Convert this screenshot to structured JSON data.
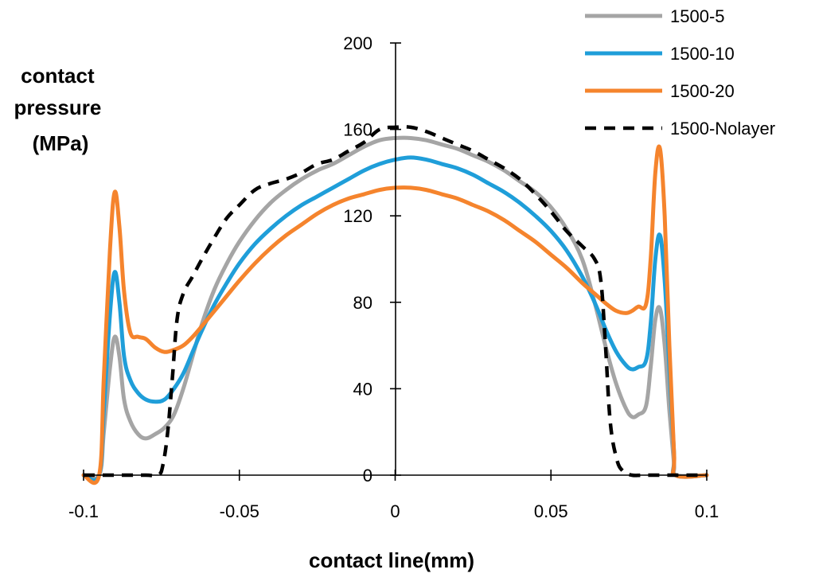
{
  "chart_data": {
    "type": "line",
    "title": "",
    "xlabel": "contact line(mm)",
    "ylabel_lines": [
      "contact",
      "pressure",
      "(MPa)"
    ],
    "xlim": [
      -0.1,
      0.1
    ],
    "ylim": [
      0,
      200
    ],
    "x_ticks": [
      -0.1,
      -0.05,
      0,
      0.05,
      0.1
    ],
    "x_tick_labels": [
      "-0.1",
      "-0.05",
      "0",
      "0.05",
      "0.1"
    ],
    "y_ticks": [
      0,
      40,
      80,
      120,
      160,
      200
    ],
    "y_tick_labels": [
      "0",
      "40",
      "80",
      "120",
      "160",
      "200"
    ],
    "grid": false,
    "legend_position": "top-right",
    "series": [
      {
        "name": "1500-5",
        "color": "#a5a5a5",
        "dash": "solid",
        "points": [
          [
            -0.1,
            0
          ],
          [
            -0.095,
            0
          ],
          [
            -0.0935,
            20
          ],
          [
            -0.0915,
            50
          ],
          [
            -0.09,
            64
          ],
          [
            -0.0885,
            55
          ],
          [
            -0.087,
            35
          ],
          [
            -0.085,
            25
          ],
          [
            -0.0825,
            19
          ],
          [
            -0.08,
            17
          ],
          [
            -0.077,
            19
          ],
          [
            -0.074,
            22
          ],
          [
            -0.071,
            28
          ],
          [
            -0.068,
            40
          ],
          [
            -0.065,
            55
          ],
          [
            -0.062,
            70
          ],
          [
            -0.058,
            86
          ],
          [
            -0.054,
            98
          ],
          [
            -0.05,
            108
          ],
          [
            -0.045,
            118
          ],
          [
            -0.04,
            126
          ],
          [
            -0.035,
            132
          ],
          [
            -0.03,
            137
          ],
          [
            -0.025,
            141
          ],
          [
            -0.02,
            144
          ],
          [
            -0.015,
            148
          ],
          [
            -0.01,
            152
          ],
          [
            -0.005,
            155
          ],
          [
            0,
            156
          ],
          [
            0.005,
            156
          ],
          [
            0.01,
            155
          ],
          [
            0.015,
            153
          ],
          [
            0.02,
            151
          ],
          [
            0.025,
            148
          ],
          [
            0.03,
            145
          ],
          [
            0.035,
            141
          ],
          [
            0.04,
            136
          ],
          [
            0.045,
            131
          ],
          [
            0.05,
            124
          ],
          [
            0.055,
            114
          ],
          [
            0.06,
            100
          ],
          [
            0.064,
            80
          ],
          [
            0.068,
            57
          ],
          [
            0.071,
            42
          ],
          [
            0.074,
            31
          ],
          [
            0.076,
            27
          ],
          [
            0.078,
            28
          ],
          [
            0.0805,
            32
          ],
          [
            0.082,
            50
          ],
          [
            0.0835,
            72
          ],
          [
            0.085,
            77
          ],
          [
            0.0865,
            60
          ],
          [
            0.088,
            30
          ],
          [
            0.0895,
            5
          ],
          [
            0.09,
            0
          ],
          [
            0.1,
            0
          ]
        ]
      },
      {
        "name": "1500-10",
        "color": "#1f9ed9",
        "dash": "solid",
        "points": [
          [
            -0.1,
            0
          ],
          [
            -0.095,
            0
          ],
          [
            -0.0935,
            30
          ],
          [
            -0.0915,
            75
          ],
          [
            -0.09,
            94
          ],
          [
            -0.0885,
            80
          ],
          [
            -0.087,
            55
          ],
          [
            -0.085,
            44
          ],
          [
            -0.0825,
            38
          ],
          [
            -0.08,
            35
          ],
          [
            -0.077,
            34
          ],
          [
            -0.074,
            35
          ],
          [
            -0.071,
            40
          ],
          [
            -0.068,
            47
          ],
          [
            -0.065,
            57
          ],
          [
            -0.062,
            67
          ],
          [
            -0.058,
            79
          ],
          [
            -0.054,
            89
          ],
          [
            -0.05,
            98
          ],
          [
            -0.045,
            107
          ],
          [
            -0.04,
            114
          ],
          [
            -0.035,
            120
          ],
          [
            -0.03,
            125
          ],
          [
            -0.025,
            129
          ],
          [
            -0.02,
            133
          ],
          [
            -0.015,
            137
          ],
          [
            -0.01,
            141
          ],
          [
            -0.005,
            144
          ],
          [
            0,
            146
          ],
          [
            0.005,
            147
          ],
          [
            0.01,
            146
          ],
          [
            0.015,
            144
          ],
          [
            0.02,
            142
          ],
          [
            0.025,
            139
          ],
          [
            0.03,
            135
          ],
          [
            0.035,
            131
          ],
          [
            0.04,
            126
          ],
          [
            0.045,
            120
          ],
          [
            0.05,
            113
          ],
          [
            0.055,
            104
          ],
          [
            0.06,
            92
          ],
          [
            0.064,
            80
          ],
          [
            0.068,
            66
          ],
          [
            0.071,
            57
          ],
          [
            0.074,
            51
          ],
          [
            0.076,
            49
          ],
          [
            0.078,
            50
          ],
          [
            0.0805,
            53
          ],
          [
            0.082,
            70
          ],
          [
            0.0835,
            100
          ],
          [
            0.085,
            111
          ],
          [
            0.0865,
            90
          ],
          [
            0.088,
            50
          ],
          [
            0.0895,
            10
          ],
          [
            0.09,
            0
          ],
          [
            0.1,
            0
          ]
        ]
      },
      {
        "name": "1500-20",
        "color": "#f5842d",
        "dash": "solid",
        "points": [
          [
            -0.1,
            0
          ],
          [
            -0.095,
            0
          ],
          [
            -0.0935,
            45
          ],
          [
            -0.0915,
            105
          ],
          [
            -0.09,
            131
          ],
          [
            -0.0885,
            115
          ],
          [
            -0.087,
            85
          ],
          [
            -0.085,
            66
          ],
          [
            -0.0825,
            64
          ],
          [
            -0.08,
            63
          ],
          [
            -0.077,
            59
          ],
          [
            -0.074,
            57
          ],
          [
            -0.071,
            58
          ],
          [
            -0.068,
            60
          ],
          [
            -0.065,
            64
          ],
          [
            -0.062,
            69
          ],
          [
            -0.058,
            76
          ],
          [
            -0.054,
            83
          ],
          [
            -0.05,
            90
          ],
          [
            -0.045,
            98
          ],
          [
            -0.04,
            105
          ],
          [
            -0.035,
            111
          ],
          [
            -0.03,
            116
          ],
          [
            -0.025,
            121
          ],
          [
            -0.02,
            125
          ],
          [
            -0.015,
            128
          ],
          [
            -0.01,
            130
          ],
          [
            -0.005,
            132
          ],
          [
            0,
            133
          ],
          [
            0.005,
            133
          ],
          [
            0.01,
            132
          ],
          [
            0.015,
            130
          ],
          [
            0.02,
            128
          ],
          [
            0.025,
            125
          ],
          [
            0.03,
            122
          ],
          [
            0.035,
            118
          ],
          [
            0.04,
            113
          ],
          [
            0.045,
            108
          ],
          [
            0.05,
            102
          ],
          [
            0.055,
            96
          ],
          [
            0.06,
            89
          ],
          [
            0.064,
            84
          ],
          [
            0.068,
            79
          ],
          [
            0.071,
            76
          ],
          [
            0.074,
            75
          ],
          [
            0.076,
            76
          ],
          [
            0.078,
            78
          ],
          [
            0.0805,
            79
          ],
          [
            0.082,
            100
          ],
          [
            0.0835,
            140
          ],
          [
            0.085,
            151
          ],
          [
            0.0865,
            120
          ],
          [
            0.088,
            60
          ],
          [
            0.0895,
            10
          ],
          [
            0.09,
            0
          ],
          [
            0.1,
            0
          ]
        ]
      },
      {
        "name": "1500-Nolayer",
        "color": "#000000",
        "dash": "dashed",
        "points": [
          [
            -0.1,
            0
          ],
          [
            -0.09,
            0
          ],
          [
            -0.08,
            0
          ],
          [
            -0.076,
            0
          ],
          [
            -0.0745,
            5
          ],
          [
            -0.073,
            20
          ],
          [
            -0.0715,
            45
          ],
          [
            -0.07,
            72
          ],
          [
            -0.068,
            84
          ],
          [
            -0.065,
            92
          ],
          [
            -0.062,
            100
          ],
          [
            -0.058,
            110
          ],
          [
            -0.054,
            119
          ],
          [
            -0.05,
            125
          ],
          [
            -0.045,
            132
          ],
          [
            -0.04,
            135
          ],
          [
            -0.035,
            137
          ],
          [
            -0.03,
            140
          ],
          [
            -0.025,
            144
          ],
          [
            -0.02,
            146
          ],
          [
            -0.015,
            150
          ],
          [
            -0.01,
            154
          ],
          [
            -0.005,
            160
          ],
          [
            0,
            161
          ],
          [
            0.005,
            161
          ],
          [
            0.01,
            159
          ],
          [
            0.015,
            156
          ],
          [
            0.02,
            153
          ],
          [
            0.025,
            150
          ],
          [
            0.03,
            146
          ],
          [
            0.035,
            142
          ],
          [
            0.04,
            137
          ],
          [
            0.045,
            130
          ],
          [
            0.05,
            122
          ],
          [
            0.055,
            113
          ],
          [
            0.06,
            106
          ],
          [
            0.064,
            100
          ],
          [
            0.066,
            90
          ],
          [
            0.0675,
            60
          ],
          [
            0.069,
            25
          ],
          [
            0.071,
            8
          ],
          [
            0.073,
            2
          ],
          [
            0.076,
            0
          ],
          [
            0.08,
            0
          ],
          [
            0.09,
            0
          ],
          [
            0.1,
            0
          ]
        ]
      }
    ]
  }
}
